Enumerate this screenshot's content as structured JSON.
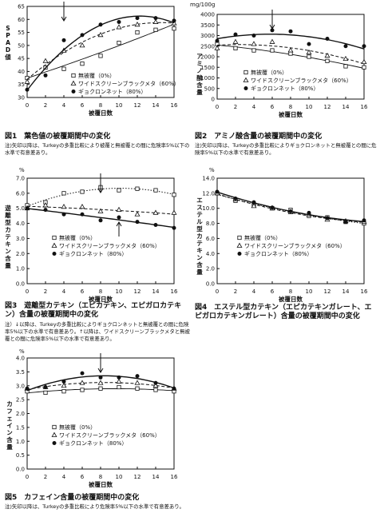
{
  "chart_data": [
    {
      "id": "fig1",
      "type": "scatter",
      "title": "図1　葉色値の被覆期間中の変化",
      "note": "注)矢印以降は、Turkeyの多重比較により被覆と無被覆との間に危険率5%以下の水準で有意差あり。",
      "ylabel": "SPAD値",
      "xlabel": "被覆日数",
      "xlim": [
        0,
        16
      ],
      "ylim": [
        30,
        65
      ],
      "xticks": [
        "0",
        "2",
        "4",
        "6",
        "8",
        "10",
        "12",
        "14",
        "16"
      ],
      "yticks": [
        "30",
        "35",
        "40",
        "45",
        "50",
        "55",
        "60",
        "65"
      ],
      "arrow_x": [
        4
      ],
      "series": [
        {
          "name": "無被覆（0%）",
          "marker": "square",
          "style": "solid-thin",
          "points": [
            [
              0,
              37.5
            ],
            [
              2,
              41.5
            ],
            [
              4,
              41
            ],
            [
              6,
              43
            ],
            [
              8,
              46
            ],
            [
              10,
              51
            ],
            [
              12,
              55
            ],
            [
              14,
              56
            ],
            [
              16,
              56.5
            ]
          ]
        },
        {
          "name": "ワイドスクリーンブラックメタ（60%）",
          "marker": "triangle",
          "style": "dashed",
          "points": [
            [
              0,
              36
            ],
            [
              2,
              44
            ],
            [
              4,
              48
            ],
            [
              6,
              50
            ],
            [
              8,
              54
            ],
            [
              10,
              57
            ],
            [
              12,
              58
            ],
            [
              14,
              59
            ],
            [
              16,
              58.5
            ]
          ]
        },
        {
          "name": "ギョクロンネット（80%）",
          "marker": "circle",
          "style": "solid",
          "points": [
            [
              0,
              33
            ],
            [
              2,
              38.5
            ],
            [
              4,
              52
            ],
            [
              6,
              54
            ],
            [
              8,
              58
            ],
            [
              10,
              59
            ],
            [
              12,
              60.5
            ],
            [
              14,
              60.5
            ],
            [
              16,
              59.5
            ]
          ]
        }
      ]
    },
    {
      "id": "fig2",
      "type": "scatter",
      "title": "図2　アミノ酸含量の被覆期間中の変化",
      "note": "注)矢印以降は、Turkeyの多重比較によりギョクロンネットと無被覆との間に危険率5%以下の水準で有意差あり。",
      "ylabel": "アミノ酸含量",
      "yunit": "mg/100g",
      "xlabel": "被覆日数",
      "xlim": [
        0,
        16
      ],
      "ylim": [
        0,
        4000
      ],
      "xticks": [
        "0",
        "2",
        "4",
        "6",
        "8",
        "10",
        "12",
        "14",
        "16"
      ],
      "yticks": [
        "0",
        "500",
        "1000",
        "1500",
        "2000",
        "2500",
        "3000",
        "3500",
        "4000"
      ],
      "arrow_x": [
        6
      ],
      "series": [
        {
          "name": "無被覆（0%）",
          "marker": "square",
          "style": "solid-thin",
          "points": [
            [
              0,
              2600
            ],
            [
              2,
              2400
            ],
            [
              4,
              2300
            ],
            [
              6,
              2300
            ],
            [
              8,
              2150
            ],
            [
              10,
              2000
            ],
            [
              12,
              1800
            ],
            [
              14,
              1550
            ],
            [
              16,
              1500
            ]
          ]
        },
        {
          "name": "ワイドスクリーンブラックメタ（60%）",
          "marker": "triangle",
          "style": "dashed",
          "points": [
            [
              0,
              2400
            ],
            [
              2,
              2700
            ],
            [
              4,
              2600
            ],
            [
              6,
              2700
            ],
            [
              8,
              2300
            ],
            [
              10,
              2200
            ],
            [
              12,
              2050
            ],
            [
              14,
              1900
            ],
            [
              16,
              1750
            ]
          ]
        },
        {
          "name": "ギョクロンネット（80%）",
          "marker": "circle",
          "style": "solid",
          "points": [
            [
              0,
              2750
            ],
            [
              2,
              3050
            ],
            [
              4,
              3000
            ],
            [
              6,
              3250
            ],
            [
              8,
              3200
            ],
            [
              10,
              2600
            ],
            [
              12,
              2850
            ],
            [
              14,
              2500
            ],
            [
              16,
              2500
            ]
          ]
        }
      ]
    },
    {
      "id": "fig3",
      "type": "scatter",
      "title": "図3　遊離型カテキン（エピカテキン、エピガロカテキン）含量の被覆期間中の変化",
      "note": "注）↓以降は、Turkeyの多重比較によりギョクロンネットと無被覆との間に危険率5%以下の水準で有意差あり。↑以降は、ワイドスクリーンブラックメタと無被覆との間に危険率5%以下の水準で有意差あり。",
      "ylabel": "遊離型カテキン含量",
      "yunit": "%",
      "xlabel": "被覆日数",
      "xlim": [
        0,
        16
      ],
      "ylim": [
        0,
        7
      ],
      "xticks": [
        "0",
        "2",
        "4",
        "6",
        "8",
        "10",
        "12",
        "14",
        "16"
      ],
      "yticks": [
        "0.0",
        "1.0",
        "2.0",
        "3.0",
        "4.0",
        "5.0",
        "6.0",
        "7.0"
      ],
      "arrow_down_x": [
        8
      ],
      "arrow_up_x": [
        10
      ],
      "series": [
        {
          "name": "無被覆（0%）",
          "marker": "square",
          "style": "dotted",
          "points": [
            [
              0,
              5.2
            ],
            [
              2,
              5.4
            ],
            [
              4,
              6.0
            ],
            [
              6,
              6.1
            ],
            [
              8,
              6.4
            ],
            [
              10,
              6.2
            ],
            [
              12,
              6.3
            ],
            [
              14,
              6.2
            ],
            [
              16,
              5.9
            ]
          ]
        },
        {
          "name": "ワイドスクリーンブラックメタ（60%）",
          "marker": "triangle",
          "style": "dashed",
          "points": [
            [
              0,
              5.0
            ],
            [
              2,
              5.2
            ],
            [
              4,
              5.1
            ],
            [
              6,
              5.1
            ],
            [
              8,
              4.8
            ],
            [
              10,
              4.9
            ],
            [
              12,
              4.6
            ],
            [
              14,
              4.7
            ],
            [
              16,
              4.7
            ]
          ]
        },
        {
          "name": "ギョクロンネット（80%）",
          "marker": "circle",
          "style": "solid",
          "points": [
            [
              0,
              5.0
            ],
            [
              2,
              4.9
            ],
            [
              4,
              4.6
            ],
            [
              6,
              4.6
            ],
            [
              8,
              4.2
            ],
            [
              10,
              4.4
            ],
            [
              12,
              4.1
            ],
            [
              14,
              3.9
            ],
            [
              16,
              3.7
            ]
          ]
        }
      ]
    },
    {
      "id": "fig4",
      "type": "scatter",
      "title": "図4　エステル型カテキン（エピカテキンガレート、エピガロカテキンガレート）含量の被覆期間中の変化",
      "ylabel": "エステル型カテキン含量",
      "yunit": "%",
      "xlabel": "被覆日数",
      "xlim": [
        0,
        16
      ],
      "ylim": [
        0,
        14
      ],
      "xticks": [
        "0",
        "2",
        "4",
        "6",
        "8",
        "10",
        "12",
        "14",
        "16"
      ],
      "yticks": [
        "0.0",
        "2.0",
        "4.0",
        "6.0",
        "8.0",
        "10.0",
        "12.0",
        "14.0"
      ],
      "series": [
        {
          "name": "無被覆（0%）",
          "marker": "square",
          "style": "dotted",
          "points": [
            [
              0,
              12.0
            ],
            [
              2,
              11.0
            ],
            [
              4,
              10.5
            ],
            [
              6,
              10.0
            ],
            [
              8,
              9.8
            ],
            [
              10,
              9.0
            ],
            [
              12,
              8.8
            ],
            [
              14,
              8.2
            ],
            [
              16,
              8.0
            ]
          ]
        },
        {
          "name": "ワイドスクリーンブラックメタ（60%）",
          "marker": "triangle",
          "style": "dashed",
          "points": [
            [
              0,
              12.0
            ],
            [
              2,
              11.2
            ],
            [
              4,
              10.3
            ],
            [
              6,
              10.0
            ],
            [
              8,
              9.5
            ],
            [
              10,
              9.2
            ],
            [
              12,
              8.5
            ],
            [
              14,
              8.3
            ],
            [
              16,
              8.2
            ]
          ]
        },
        {
          "name": "ギョクロンネット（80%）",
          "marker": "circle",
          "style": "solid",
          "points": [
            [
              0,
              12.2
            ],
            [
              2,
              11.3
            ],
            [
              4,
              10.8
            ],
            [
              6,
              10.1
            ],
            [
              8,
              9.6
            ],
            [
              10,
              9.4
            ],
            [
              12,
              8.7
            ],
            [
              14,
              8.2
            ],
            [
              16,
              8.4
            ]
          ]
        }
      ]
    },
    {
      "id": "fig5",
      "type": "scatter",
      "title": "図5　カフェイン含量の被覆期間中の変化",
      "note": "注)矢印以降は、Turkeyの多重比較により危険率5%以下の水準で有意差あり。",
      "ylabel": "カフェイン含量",
      "yunit": "%",
      "xlabel": "被覆日数",
      "xlim": [
        0,
        16
      ],
      "ylim": [
        0,
        4
      ],
      "xticks": [
        "0",
        "2",
        "4",
        "6",
        "8",
        "10",
        "12",
        "14",
        "16"
      ],
      "yticks": [
        "0.0",
        "0.5",
        "1.0",
        "1.5",
        "2.0",
        "2.5",
        "3.0",
        "3.5",
        "4.0"
      ],
      "arrow_x": [
        8
      ],
      "series": [
        {
          "name": "無被覆（0%）",
          "marker": "square",
          "style": "solid-thin",
          "points": [
            [
              0,
              2.8
            ],
            [
              2,
              2.75
            ],
            [
              4,
              2.8
            ],
            [
              6,
              2.85
            ],
            [
              8,
              2.9
            ],
            [
              10,
              2.95
            ],
            [
              12,
              2.9
            ],
            [
              14,
              2.85
            ],
            [
              16,
              2.8
            ]
          ]
        },
        {
          "name": "ワイドスクリーンブラックメタ（60%）",
          "marker": "triangle",
          "style": "dashed",
          "points": [
            [
              0,
              2.9
            ],
            [
              2,
              2.95
            ],
            [
              4,
              3.0
            ],
            [
              6,
              3.1
            ],
            [
              8,
              3.1
            ],
            [
              10,
              3.15
            ],
            [
              12,
              3.1
            ],
            [
              14,
              3.0
            ],
            [
              16,
              2.9
            ]
          ]
        },
        {
          "name": "ギョクロンネット（80%）",
          "marker": "circle",
          "style": "solid",
          "points": [
            [
              0,
              2.9
            ],
            [
              2,
              2.95
            ],
            [
              4,
              3.15
            ],
            [
              6,
              3.45
            ],
            [
              8,
              3.3
            ],
            [
              10,
              3.3
            ],
            [
              12,
              3.35
            ],
            [
              14,
              3.1
            ],
            [
              16,
              2.9
            ]
          ]
        }
      ]
    }
  ]
}
